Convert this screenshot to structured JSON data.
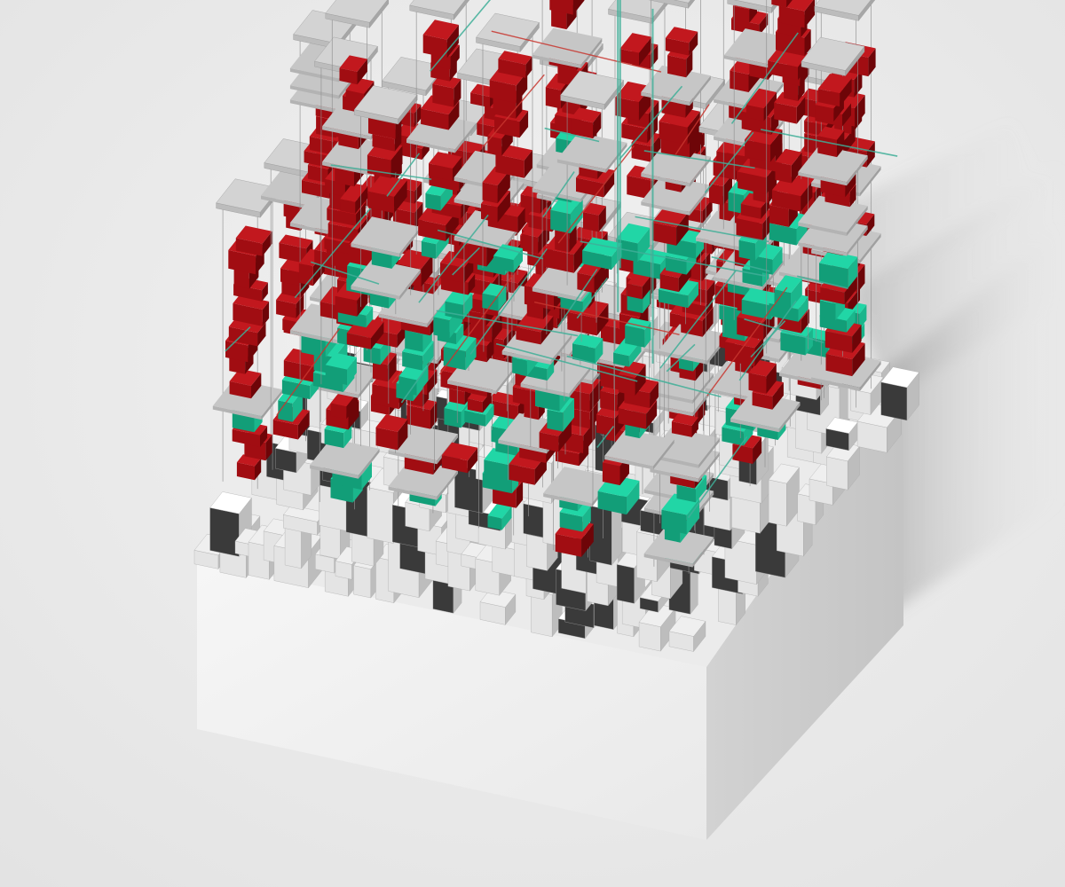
{
  "scene": {
    "subject": "isometric-architectural-massing-model",
    "palette": {
      "background": "#e3e3e3",
      "background_highlight": "#f2f2f2",
      "base_left": "#f0f0f0",
      "base_right": "#cdcdcd",
      "base_top": "#ebebeb",
      "module_red": "#a10d12",
      "module_red_dark": "#6e0508",
      "module_red_light": "#c2181e",
      "module_teal": "#21d6a6",
      "module_teal_dark": "#129e78",
      "frame_line": "#8e8e8e",
      "slab_grey": "#c6c6c6",
      "circulation_teal": "#3faf98",
      "circulation_red": "#c8362f",
      "shadow": "#6d6d6d"
    },
    "legend": []
  }
}
